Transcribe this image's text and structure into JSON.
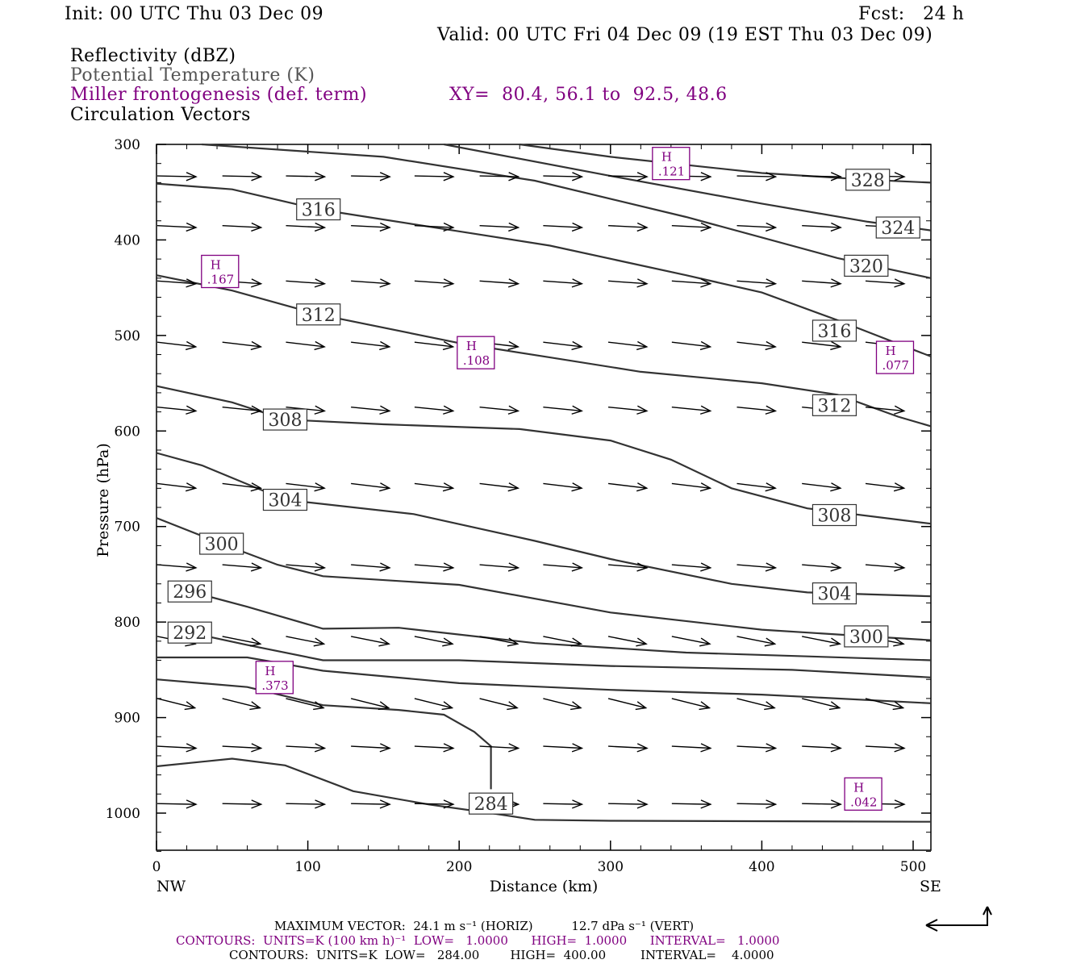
{
  "header": {
    "init": "Init: 00 UTC Thu 03 Dec 09",
    "fcst": "Fcst:   24 h",
    "valid": "Valid: 00 UTC Fri 04 Dec 09 (19 EST Thu 03 Dec 09)"
  },
  "fields": {
    "reflectivity": "Reflectivity (dBZ)",
    "theta": "Potential Temperature (K)",
    "frontogenesis": "Miller frontogenesis (def. term)",
    "xy": "XY=  80.4, 56.1 to  92.5, 48.6",
    "vectors": "Circulation Vectors"
  },
  "footer": {
    "max_vector": "MAXIMUM VECTOR:  24.1 m s⁻¹ (HORIZ)          12.7 dPa s⁻¹ (VERT)",
    "contours_fg": "CONTOURS:  UNITS=K (100 km h)⁻¹  LOW=   1.0000      HIGH=  1.0000      INTERVAL=   1.0000",
    "contours_theta": "CONTOURS:  UNITS=K  LOW=   284.00        HIGH=  400.00         INTERVAL=    4.0000"
  },
  "colors": {
    "frontogenesis": "#800080",
    "theta": "#333333",
    "vectors": "#000000"
  },
  "chart_data": {
    "type": "line",
    "title": "",
    "xlabel": "Distance (km)",
    "ylabel": "Pressure (hPa)",
    "xlim": [
      0,
      512
    ],
    "ylim": [
      1040,
      300
    ],
    "xticks": [
      0,
      100,
      200,
      300,
      400,
      500
    ],
    "yticks": [
      300,
      400,
      500,
      600,
      700,
      800,
      900,
      1000
    ],
    "x_end_labels": {
      "left": "NW",
      "right": "SE"
    },
    "grid": false,
    "series": [
      {
        "label": "328",
        "label_at": [
          470,
          337
        ],
        "values": [
          [
            240,
            300
          ],
          [
            300,
            313
          ],
          [
            400,
            330
          ],
          [
            470,
            337
          ],
          [
            512,
            340
          ]
        ]
      },
      {
        "label": "324",
        "label_at": [
          490,
          387
        ],
        "values": [
          [
            190,
            300
          ],
          [
            300,
            333
          ],
          [
            400,
            362
          ],
          [
            470,
            381
          ],
          [
            512,
            390
          ]
        ]
      },
      {
        "label": "320",
        "label_at": [
          469,
          427
        ],
        "values": [
          [
            30,
            300
          ],
          [
            150,
            313
          ],
          [
            250,
            338
          ],
          [
            350,
            376
          ],
          [
            450,
            419
          ],
          [
            512,
            440
          ]
        ]
      },
      {
        "label": "316",
        "label_at": [
          107,
          368
        ],
        "values": [
          [
            0,
            341
          ],
          [
            50,
            347
          ],
          [
            107,
            368
          ],
          [
            200,
            391
          ],
          [
            260,
            406
          ],
          [
            350,
            437
          ],
          [
            400,
            455
          ],
          [
            450,
            484
          ],
          [
            512,
            522
          ]
        ]
      },
      {
        "label": "316",
        "label_at": [
          448,
          495
        ],
        "values": [
          [
            0,
            341
          ],
          [
            50,
            347
          ],
          [
            107,
            368
          ],
          [
            200,
            391
          ],
          [
            260,
            406
          ],
          [
            350,
            437
          ],
          [
            400,
            455
          ],
          [
            450,
            484
          ],
          [
            512,
            522
          ]
        ]
      },
      {
        "label": "312",
        "label_at": [
          107,
          478
        ],
        "values": [
          [
            0,
            437
          ],
          [
            50,
            453
          ],
          [
            107,
            478
          ],
          [
            200,
            508
          ],
          [
            260,
            523
          ],
          [
            320,
            538
          ],
          [
            400,
            550
          ],
          [
            450,
            562
          ],
          [
            490,
            585
          ],
          [
            512,
            595
          ]
        ]
      },
      {
        "label": "312",
        "label_at": [
          448,
          573
        ],
        "values": [
          [
            0,
            437
          ],
          [
            50,
            453
          ],
          [
            107,
            478
          ],
          [
            200,
            508
          ],
          [
            260,
            523
          ],
          [
            320,
            538
          ],
          [
            400,
            550
          ],
          [
            450,
            562
          ],
          [
            490,
            585
          ],
          [
            512,
            595
          ]
        ]
      },
      {
        "label": "308",
        "label_at": [
          85,
          588
        ],
        "values": [
          [
            0,
            553
          ],
          [
            50,
            570
          ],
          [
            85,
            588
          ],
          [
            150,
            593
          ],
          [
            240,
            598
          ],
          [
            300,
            610
          ],
          [
            340,
            630
          ],
          [
            380,
            660
          ],
          [
            430,
            681
          ],
          [
            512,
            697
          ]
        ]
      },
      {
        "label": "308",
        "label_at": [
          448,
          688
        ],
        "values": [
          [
            0,
            553
          ],
          [
            50,
            570
          ],
          [
            85,
            588
          ],
          [
            150,
            593
          ],
          [
            240,
            598
          ],
          [
            300,
            610
          ],
          [
            340,
            630
          ],
          [
            380,
            660
          ],
          [
            430,
            681
          ],
          [
            512,
            697
          ]
        ]
      },
      {
        "label": "304",
        "label_at": [
          85,
          672
        ],
        "values": [
          [
            0,
            623
          ],
          [
            30,
            636
          ],
          [
            85,
            672
          ],
          [
            170,
            687
          ],
          [
            250,
            715
          ],
          [
            300,
            734
          ],
          [
            380,
            760
          ],
          [
            430,
            769
          ],
          [
            512,
            773
          ]
        ]
      },
      {
        "label": "304",
        "label_at": [
          448,
          770
        ],
        "values": [
          [
            0,
            623
          ],
          [
            30,
            636
          ],
          [
            85,
            672
          ],
          [
            170,
            687
          ],
          [
            250,
            715
          ],
          [
            300,
            734
          ],
          [
            380,
            760
          ],
          [
            430,
            769
          ],
          [
            512,
            773
          ]
        ]
      },
      {
        "label": "300",
        "label_at": [
          43,
          718
        ],
        "values": [
          [
            0,
            691
          ],
          [
            43,
            718
          ],
          [
            80,
            740
          ],
          [
            110,
            752
          ],
          [
            200,
            761
          ],
          [
            300,
            790
          ],
          [
            400,
            808
          ],
          [
            470,
            815
          ],
          [
            512,
            819
          ]
        ]
      },
      {
        "label": "300",
        "label_at": [
          469,
          815
        ],
        "values": [
          [
            0,
            691
          ],
          [
            43,
            718
          ],
          [
            80,
            740
          ],
          [
            110,
            752
          ],
          [
            200,
            761
          ],
          [
            300,
            790
          ],
          [
            400,
            808
          ],
          [
            470,
            815
          ],
          [
            512,
            819
          ]
        ]
      },
      {
        "label": "296",
        "label_at": [
          22,
          768
        ],
        "values": [
          [
            22,
            768
          ],
          [
            60,
            784
          ],
          [
            110,
            807
          ],
          [
            160,
            806
          ],
          [
            250,
            822
          ],
          [
            350,
            832
          ],
          [
            512,
            840
          ]
        ]
      },
      {
        "label": "292",
        "label_at": [
          22,
          811
        ],
        "values": [
          [
            22,
            811
          ],
          [
            60,
            824
          ],
          [
            110,
            840
          ],
          [
            200,
            840
          ],
          [
            300,
            846
          ],
          [
            420,
            850
          ],
          [
            512,
            858
          ]
        ]
      },
      {
        "label": "",
        "label_at": null,
        "values": [
          [
            0,
            837
          ],
          [
            60,
            837
          ],
          [
            110,
            851
          ],
          [
            200,
            864
          ],
          [
            300,
            871
          ],
          [
            400,
            876
          ],
          [
            512,
            885
          ]
        ]
      },
      {
        "label": "",
        "label_at": null,
        "values": [
          [
            0,
            860
          ],
          [
            60,
            868
          ],
          [
            110,
            887
          ],
          [
            160,
            892
          ],
          [
            190,
            897
          ],
          [
            210,
            915
          ],
          [
            221,
            930
          ],
          [
            221,
            975
          ]
        ]
      },
      {
        "label": "284",
        "label_at": [
          221,
          990
        ],
        "values": [
          [
            0,
            951
          ],
          [
            50,
            943
          ],
          [
            85,
            950
          ],
          [
            130,
            977
          ],
          [
            180,
            991
          ],
          [
            221,
            1000
          ],
          [
            250,
            1007
          ],
          [
            300,
            1008
          ],
          [
            512,
            1009
          ]
        ]
      }
    ],
    "frontogenesis_maxima": [
      {
        "label": "H",
        "value": ".121",
        "x": 340,
        "p": 320
      },
      {
        "label": "H",
        "value": ".167",
        "x": 42,
        "p": 433
      },
      {
        "label": "H",
        "value": ".108",
        "x": 211,
        "p": 518
      },
      {
        "label": "H",
        "value": ".077",
        "x": 488,
        "p": 523
      },
      {
        "label": "H",
        "value": ".373",
        "x": 78,
        "p": 858
      },
      {
        "label": "H",
        "value": ".042",
        "x": 467,
        "p": 980
      }
    ],
    "vector_rows": [
      {
        "p": 333,
        "dx": 1.0,
        "dy": 0.02,
        "xs": [
          0,
          43,
          85,
          128,
          170,
          213,
          255,
          298,
          340,
          383,
          426,
          468
        ]
      },
      {
        "p": 385,
        "dx": 1.0,
        "dy": 0.05,
        "xs": [
          0,
          43,
          85,
          128,
          170,
          213,
          255,
          298,
          340,
          383,
          426,
          468
        ]
      },
      {
        "p": 443,
        "dx": 1.0,
        "dy": 0.07,
        "xs": [
          0,
          43,
          85,
          128,
          170,
          213,
          255,
          298,
          340,
          383,
          426,
          468
        ]
      },
      {
        "p": 507,
        "dx": 1.0,
        "dy": 0.12,
        "xs": [
          0,
          43,
          85,
          128,
          170,
          213,
          255,
          298,
          340,
          383,
          426,
          468
        ]
      },
      {
        "p": 575,
        "dx": 1.0,
        "dy": 0.1,
        "xs": [
          0,
          43,
          85,
          128,
          170,
          213,
          255,
          298,
          340,
          383,
          426,
          468
        ]
      },
      {
        "p": 655,
        "dx": 1.0,
        "dy": 0.12,
        "xs": [
          0,
          43,
          85,
          128,
          170,
          213,
          255,
          298,
          340,
          383,
          426,
          468
        ]
      },
      {
        "p": 740,
        "dx": 1.0,
        "dy": 0.08,
        "xs": [
          0,
          43,
          85,
          128,
          170,
          213,
          255,
          298,
          340,
          383,
          426,
          468
        ]
      },
      {
        "p": 815,
        "dx": 1.0,
        "dy": 0.2,
        "xs": [
          0,
          43,
          85,
          128,
          170,
          213,
          255,
          298,
          340,
          383,
          426,
          468
        ]
      },
      {
        "p": 880,
        "dx": 1.0,
        "dy": 0.25,
        "xs": [
          0,
          43,
          85,
          128,
          170,
          213,
          255,
          298,
          340,
          383,
          426,
          468
        ]
      },
      {
        "p": 930,
        "dx": 1.0,
        "dy": 0.05,
        "xs": [
          0,
          43,
          85,
          128,
          170,
          213,
          255,
          298,
          340,
          383,
          426,
          468
        ]
      },
      {
        "p": 990,
        "dx": 1.0,
        "dy": 0.02,
        "xs": [
          0,
          43,
          85,
          128,
          170,
          213,
          255,
          298,
          340,
          383,
          426,
          468
        ]
      }
    ]
  }
}
